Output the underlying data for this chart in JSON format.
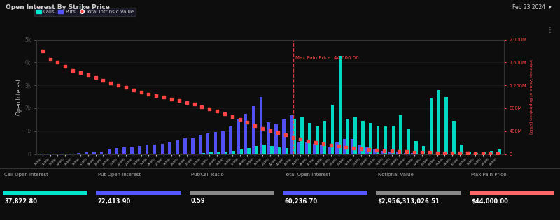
{
  "title": "Open Interest By Strike Price",
  "date_label": "Feb 23 2024",
  "bg_color": "#0d0d0d",
  "text_color": "#cccccc",
  "call_color": "#00e5cc",
  "put_color": "#5555ff",
  "intrinsic_color": "#ff4444",
  "max_pain_price": 44000,
  "strikes": [
    10000,
    12000,
    13000,
    14000,
    15000,
    16000,
    17000,
    18000,
    19000,
    20000,
    21000,
    22000,
    23000,
    24000,
    25000,
    26000,
    27000,
    28000,
    29000,
    30000,
    31000,
    32000,
    33000,
    34000,
    35000,
    36000,
    37000,
    38000,
    39000,
    40000,
    41000,
    42000,
    43000,
    44000,
    45000,
    46000,
    47000,
    48000,
    49000,
    50000,
    51000,
    52000,
    53000,
    54000,
    55000,
    56000,
    57000,
    58000,
    59000,
    60000,
    62000,
    63000,
    64000,
    65000,
    66000,
    67000,
    68000,
    70000,
    75000,
    80000,
    85000
  ],
  "calls": [
    0,
    0,
    0,
    0,
    0,
    0,
    0,
    5,
    5,
    5,
    5,
    10,
    10,
    10,
    10,
    15,
    15,
    15,
    20,
    20,
    30,
    50,
    80,
    100,
    120,
    130,
    200,
    250,
    350,
    400,
    350,
    300,
    250,
    1550,
    1600,
    1350,
    1200,
    1450,
    2150,
    4300,
    1550,
    1600,
    1450,
    1350,
    1200,
    1200,
    1250,
    1700,
    1100,
    550,
    350,
    2450,
    2800,
    2500,
    1450,
    400,
    100,
    50,
    100,
    150,
    200
  ],
  "puts": [
    5,
    10,
    10,
    15,
    20,
    40,
    80,
    100,
    120,
    200,
    250,
    300,
    300,
    350,
    400,
    420,
    430,
    500,
    600,
    700,
    700,
    850,
    900,
    950,
    1000,
    1200,
    1500,
    1750,
    2100,
    2500,
    1400,
    1300,
    1500,
    1700,
    500,
    500,
    450,
    400,
    300,
    500,
    650,
    650,
    400,
    300,
    200,
    150,
    100,
    100,
    50,
    50,
    20,
    10,
    10,
    10,
    10,
    5,
    5,
    5,
    0,
    0,
    0
  ],
  "intrinsic_vals": [
    1800,
    1650,
    1600,
    1530,
    1460,
    1420,
    1380,
    1340,
    1290,
    1240,
    1200,
    1160,
    1120,
    1080,
    1050,
    1020,
    990,
    960,
    930,
    900,
    870,
    830,
    790,
    750,
    700,
    650,
    600,
    550,
    500,
    450,
    410,
    370,
    330,
    290,
    260,
    230,
    200,
    175,
    155,
    135,
    115,
    100,
    88,
    77,
    67,
    58,
    50,
    43,
    37,
    32,
    28,
    25,
    22,
    19,
    17,
    15,
    13,
    11,
    9,
    7,
    5
  ],
  "ylim_left": [
    0,
    5000
  ],
  "ylim_right": [
    0,
    2000
  ],
  "ylabel_left": "Open Interest",
  "ylabel_right": "Intrinsic Value at Expiration [USD]",
  "footer_labels": [
    "Call Open Interest",
    "Put Open Interest",
    "Put/Call Ratio",
    "Total Open Interest",
    "Notional Value",
    "Max Pain Price"
  ],
  "footer_values": [
    "37,822.80",
    "22,413.90",
    "0.59",
    "60,236.70",
    "$2,956,313,026.51",
    "$44,000.00"
  ],
  "footer_line_colors": [
    "#00e5cc",
    "#5555ff",
    "#888888",
    "#5555ff",
    "#888888",
    "#ff6666"
  ]
}
